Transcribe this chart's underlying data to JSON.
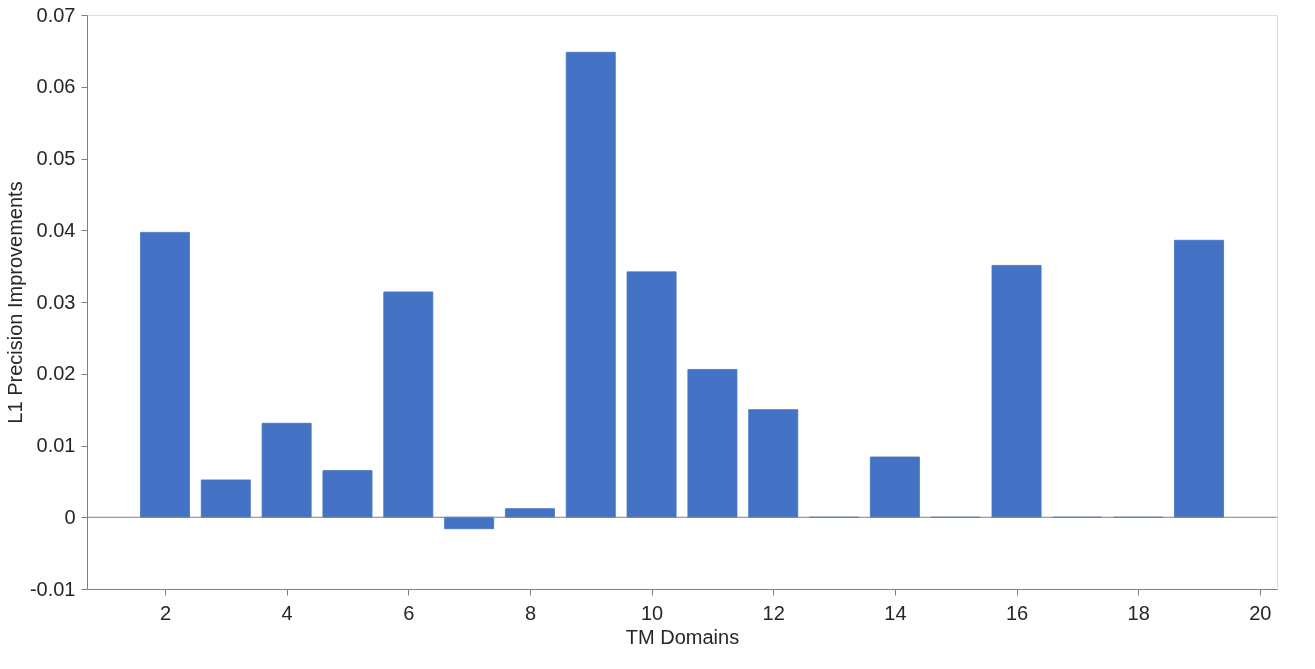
{
  "chart_data": {
    "type": "bar",
    "xlabel": "TM Domains",
    "ylabel": "L1 Precision Improvements",
    "x": [
      2,
      3,
      4,
      5,
      6,
      7,
      8,
      9,
      10,
      11,
      12,
      13,
      14,
      15,
      16,
      17,
      18,
      19
    ],
    "values": [
      0.0397,
      0.0052,
      0.0131,
      0.0065,
      0.0314,
      -0.0016,
      0.0012,
      0.0648,
      0.0342,
      0.0206,
      0.015,
      0,
      0.0084,
      0,
      0.0351,
      0,
      0,
      0.0386
    ],
    "color": "#4472c4",
    "xlim": [
      0.8,
      20.2
    ],
    "xticks": [
      2,
      4,
      6,
      8,
      10,
      12,
      14,
      16,
      18,
      20
    ],
    "ylim": [
      -0.01,
      0.07
    ],
    "yticks": [
      -0.01,
      0,
      0.01,
      0.02,
      0.03,
      0.04,
      0.05,
      0.06,
      0.07
    ],
    "ref_lines": [
      {
        "axis": "y",
        "value": 0,
        "label": null
      }
    ],
    "grid": false
  }
}
